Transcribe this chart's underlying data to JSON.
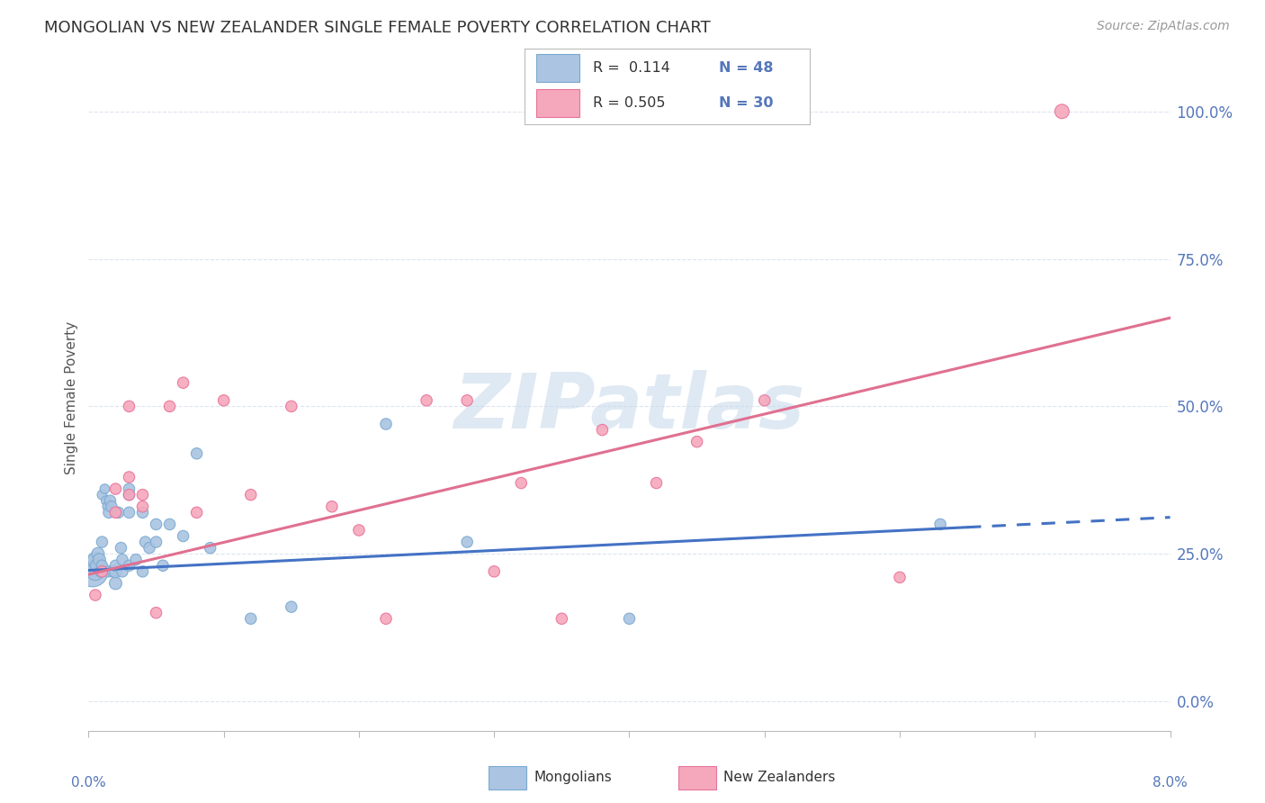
{
  "title": "MONGOLIAN VS NEW ZEALANDER SINGLE FEMALE POVERTY CORRELATION CHART",
  "source": "Source: ZipAtlas.com",
  "ylabel": "Single Female Poverty",
  "right_yticks": [
    0.0,
    0.25,
    0.5,
    0.75,
    1.0
  ],
  "right_yticklabels": [
    "0.0%",
    "25.0%",
    "50.0%",
    "75.0%",
    "100.0%"
  ],
  "xlim": [
    0.0,
    0.08
  ],
  "ylim": [
    -0.05,
    1.08
  ],
  "mongolian_color": "#aac4e2",
  "mongolian_edge": "#7aaad0",
  "nz_color": "#f5a8bc",
  "nz_edge": "#e8729a",
  "legend_R1": "R =  0.114",
  "legend_N1": "N = 48",
  "legend_R2": "R = 0.505",
  "legend_N2": "N = 30",
  "watermark": "ZIPatlas",
  "watermark_color": "#c5d8ea",
  "mongolians_x": [
    0.0003,
    0.0004,
    0.0005,
    0.0005,
    0.0006,
    0.0007,
    0.0008,
    0.0009,
    0.001,
    0.001,
    0.001,
    0.0012,
    0.0013,
    0.0014,
    0.0015,
    0.0015,
    0.0016,
    0.0017,
    0.0018,
    0.002,
    0.002,
    0.002,
    0.0022,
    0.0024,
    0.0025,
    0.0025,
    0.003,
    0.003,
    0.003,
    0.003,
    0.0035,
    0.004,
    0.004,
    0.0042,
    0.0045,
    0.005,
    0.005,
    0.0055,
    0.006,
    0.007,
    0.008,
    0.009,
    0.012,
    0.015,
    0.022,
    0.028,
    0.04,
    0.063
  ],
  "mongolians_y": [
    0.22,
    0.23,
    0.22,
    0.24,
    0.23,
    0.25,
    0.24,
    0.22,
    0.23,
    0.27,
    0.35,
    0.36,
    0.34,
    0.33,
    0.22,
    0.32,
    0.34,
    0.33,
    0.22,
    0.2,
    0.22,
    0.23,
    0.32,
    0.26,
    0.22,
    0.24,
    0.23,
    0.32,
    0.35,
    0.36,
    0.24,
    0.22,
    0.32,
    0.27,
    0.26,
    0.27,
    0.3,
    0.23,
    0.3,
    0.28,
    0.42,
    0.26,
    0.14,
    0.16,
    0.47,
    0.27,
    0.14,
    0.3
  ],
  "mongolians_size": [
    600,
    300,
    200,
    150,
    100,
    100,
    100,
    80,
    80,
    80,
    60,
    60,
    60,
    60,
    80,
    80,
    80,
    80,
    80,
    100,
    100,
    80,
    80,
    80,
    80,
    80,
    80,
    80,
    80,
    80,
    80,
    80,
    80,
    80,
    80,
    80,
    80,
    80,
    80,
    80,
    80,
    80,
    80,
    80,
    80,
    80,
    80,
    80
  ],
  "nz_x": [
    0.0005,
    0.001,
    0.002,
    0.002,
    0.003,
    0.003,
    0.003,
    0.004,
    0.004,
    0.005,
    0.006,
    0.007,
    0.008,
    0.01,
    0.012,
    0.015,
    0.018,
    0.02,
    0.022,
    0.025,
    0.028,
    0.03,
    0.032,
    0.035,
    0.038,
    0.042,
    0.045,
    0.05,
    0.06,
    0.072
  ],
  "nz_y": [
    0.18,
    0.22,
    0.32,
    0.36,
    0.35,
    0.38,
    0.5,
    0.33,
    0.35,
    0.15,
    0.5,
    0.54,
    0.32,
    0.51,
    0.35,
    0.5,
    0.33,
    0.29,
    0.14,
    0.51,
    0.51,
    0.22,
    0.37,
    0.14,
    0.46,
    0.37,
    0.44,
    0.51,
    0.21,
    1.0
  ],
  "nz_size": [
    80,
    80,
    80,
    80,
    80,
    80,
    80,
    80,
    80,
    80,
    80,
    80,
    80,
    80,
    80,
    80,
    80,
    80,
    80,
    80,
    80,
    80,
    80,
    80,
    80,
    80,
    80,
    80,
    80,
    130
  ],
  "grid_color": "#dde4f0",
  "tick_color": "#5577bb",
  "title_color": "#333333",
  "label_color": "#555555",
  "line_mongo_color": "#4472c4",
  "line_nz_color": "#e07090"
}
